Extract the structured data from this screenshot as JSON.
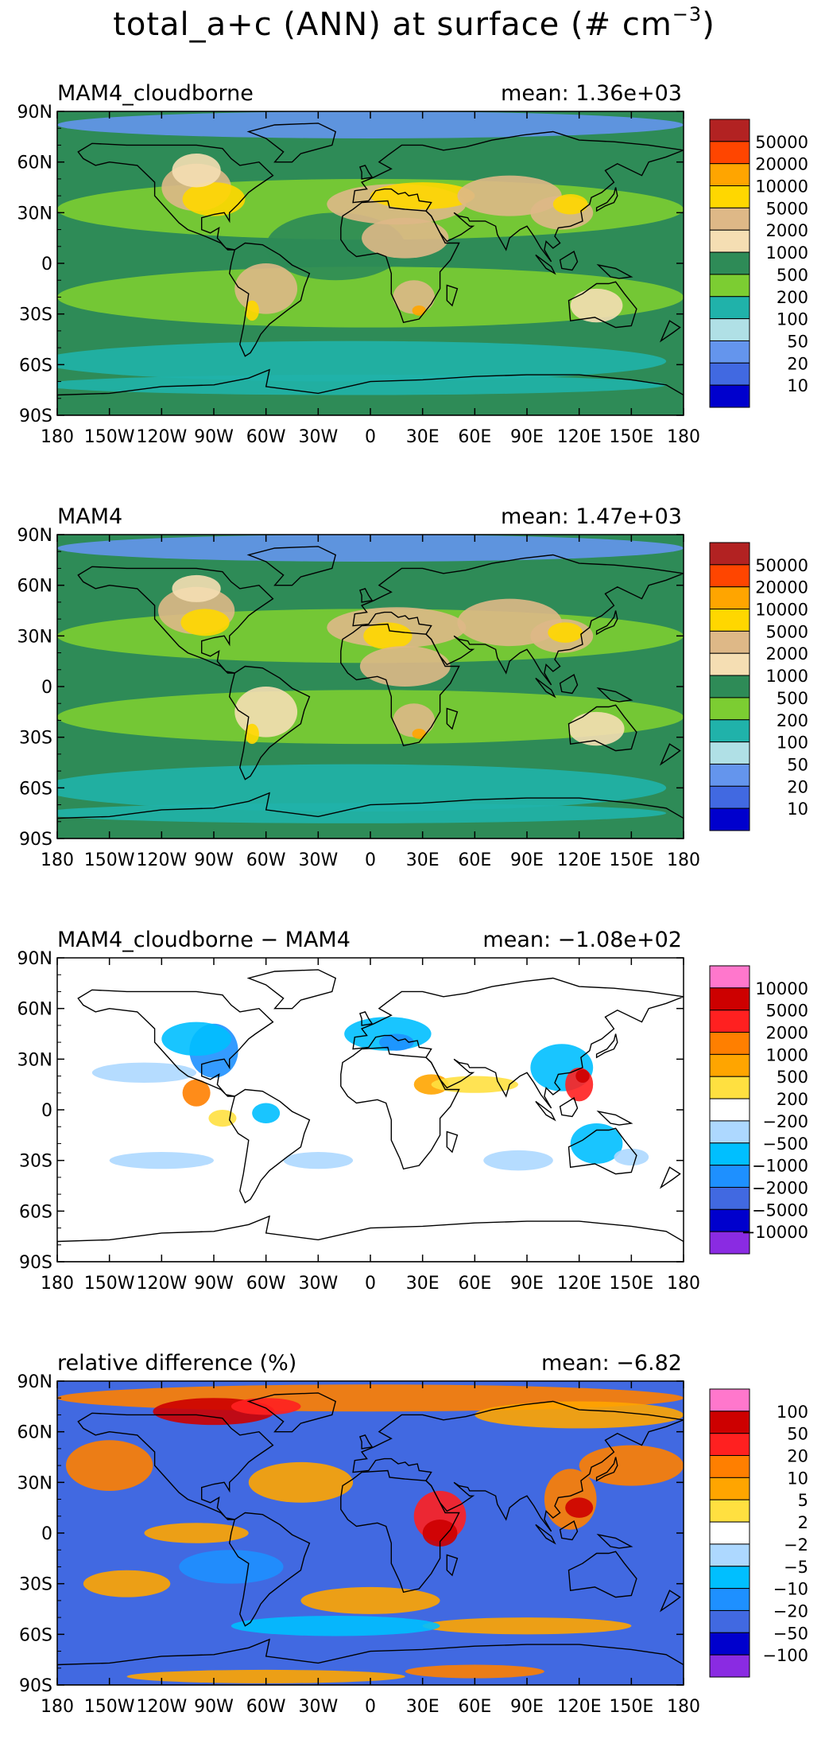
{
  "page": {
    "title_prefix": "total_a+c (ANN) at surface (# cm",
    "title_exp": "−3",
    "title_suffix": ")"
  },
  "axes": {
    "lat_ticks": [
      "90N",
      "60N",
      "30N",
      "0",
      "30S",
      "60S",
      "90S"
    ],
    "lon_ticks": [
      "180",
      "150W",
      "120W",
      "90W",
      "60W",
      "30W",
      "0",
      "30E",
      "60E",
      "90E",
      "120E",
      "150E",
      "180"
    ],
    "lat_range": [
      -90,
      90
    ],
    "lon_range": [
      -180,
      180
    ]
  },
  "chart_data": [
    {
      "type": "heatmap",
      "title": "MAM4_cloudborne",
      "mean_label": "mean:  1.36e+03",
      "mean": 1360,
      "legend_position": "right",
      "colorbar_labels": [
        "50000",
        "20000",
        "10000",
        "5000",
        "2000",
        "1000",
        "500",
        "200",
        "100",
        "50",
        "20",
        "10"
      ],
      "colorbar_colors": [
        "#b22222",
        "#ff4500",
        "#ffa500",
        "#ffd700",
        "#deb887",
        "#f5deb3",
        "#2e8b57",
        "#7ccd32",
        "#20b2aa",
        "#b0e0e6",
        "#6495ed",
        "#4169e1",
        "#0000cd"
      ],
      "background_color": "#2e8b57"
    },
    {
      "type": "heatmap",
      "title": "MAM4",
      "mean_label": "mean:  1.47e+03",
      "mean": 1470,
      "legend_position": "right",
      "colorbar_labels": [
        "50000",
        "20000",
        "10000",
        "5000",
        "2000",
        "1000",
        "500",
        "200",
        "100",
        "50",
        "20",
        "10"
      ],
      "colorbar_colors": [
        "#b22222",
        "#ff4500",
        "#ffa500",
        "#ffd700",
        "#deb887",
        "#f5deb3",
        "#2e8b57",
        "#7ccd32",
        "#20b2aa",
        "#b0e0e6",
        "#6495ed",
        "#4169e1",
        "#0000cd"
      ],
      "background_color": "#2e8b57"
    },
    {
      "type": "heatmap",
      "title": "MAM4_cloudborne − MAM4",
      "mean_label": "mean:  −1.08e+02",
      "mean": -108,
      "legend_position": "right",
      "colorbar_labels": [
        "10000",
        "5000",
        "2000",
        "1000",
        "500",
        "200",
        "−200",
        "−500",
        "−1000",
        "−2000",
        "−5000",
        "−10000"
      ],
      "colorbar_colors": [
        "#ff77cc",
        "#cd0000",
        "#ff2020",
        "#ff7f00",
        "#ffa500",
        "#ffe040",
        "#ffffff",
        "#add8ff",
        "#00bfff",
        "#1e90ff",
        "#4169e1",
        "#0000cd",
        "#8a2be2"
      ],
      "background_color": "#ffffff"
    },
    {
      "type": "heatmap",
      "title": "relative difference (%)",
      "mean_label": "mean:  −6.82",
      "mean": -6.82,
      "legend_position": "right",
      "colorbar_labels": [
        "100",
        "50",
        "20",
        "10",
        "5",
        "2",
        "−2",
        "−5",
        "−10",
        "−20",
        "−50",
        "−100"
      ],
      "colorbar_colors": [
        "#ff77cc",
        "#cd0000",
        "#ff2020",
        "#ff7f00",
        "#ffa500",
        "#ffe040",
        "#ffffff",
        "#add8ff",
        "#00bfff",
        "#1e90ff",
        "#4169e1",
        "#0000cd",
        "#8a2be2"
      ],
      "background_color": "#4169e1"
    }
  ]
}
